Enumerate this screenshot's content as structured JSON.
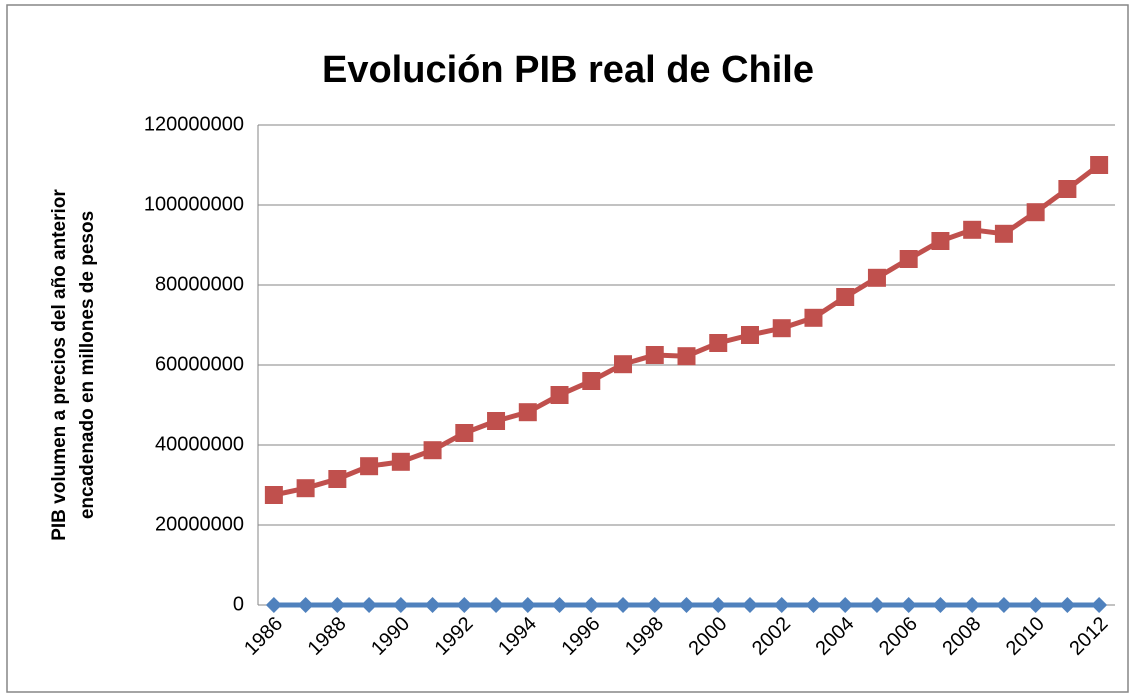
{
  "chart_data": {
    "type": "line",
    "title": "Evolución PIB real de Chile",
    "ylabel": [
      "PIB  volumen a precios del año anterior",
      "encadenado en millones de pesos"
    ],
    "categories": [
      "1986",
      null,
      "1988",
      null,
      "1990",
      null,
      "1992",
      null,
      "1994",
      null,
      "1996",
      null,
      "1998",
      null,
      "2000",
      null,
      "2002",
      null,
      "2004",
      null,
      "2006",
      null,
      "2008",
      null,
      "2010",
      null,
      "2012"
    ],
    "series": [
      {
        "color": "#4f81bd",
        "marker": "diamond",
        "values": [
          0,
          0,
          0,
          0,
          0,
          0,
          0,
          0,
          0,
          0,
          0,
          0,
          0,
          0,
          0,
          0,
          0,
          0,
          0,
          0,
          0,
          0,
          0,
          0,
          0,
          0,
          0
        ]
      },
      {
        "color": "#c0504d",
        "marker": "square",
        "values": [
          27500000,
          29200000,
          31500000,
          34700000,
          35800000,
          38700000,
          43000000,
          46000000,
          48200000,
          52500000,
          56000000,
          60200000,
          62500000,
          62200000,
          65500000,
          67500000,
          69200000,
          71800000,
          77000000,
          81800000,
          86500000,
          91000000,
          93800000,
          92800000,
          98200000,
          104000000,
          110000000
        ]
      }
    ],
    "ylim": [
      0,
      120000000
    ],
    "yticks": [
      0,
      20000000,
      40000000,
      60000000,
      80000000,
      100000000,
      120000000
    ],
    "grid": true
  }
}
